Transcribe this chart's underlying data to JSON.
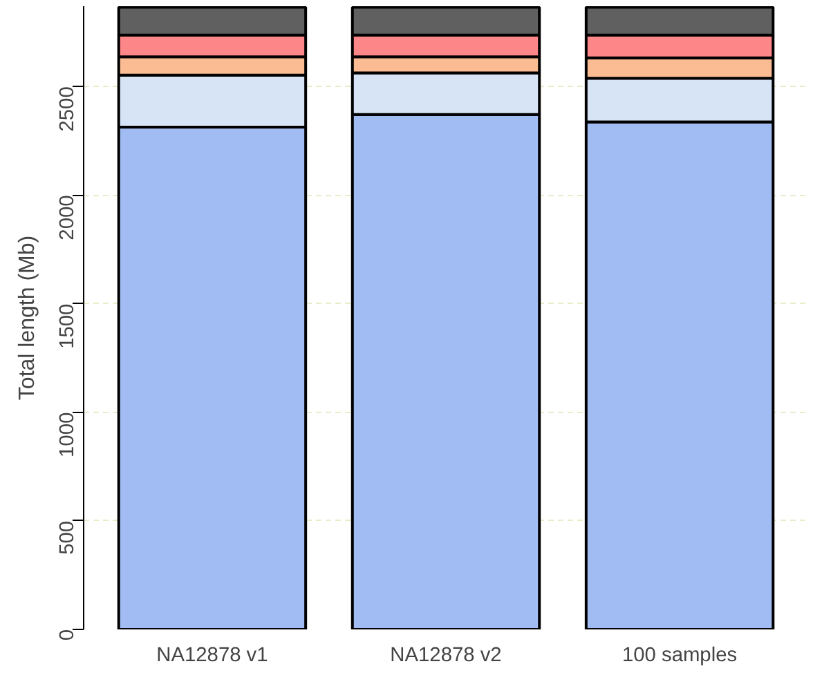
{
  "chart_data": {
    "type": "bar",
    "stacked": true,
    "ylabel": "Total length (Mb)",
    "categories": [
      "NA12878 v1",
      "NA12878 v2",
      "100 samples"
    ],
    "series": [
      {
        "color": "#a0bcf2",
        "values": [
          2313,
          2371,
          2337
        ]
      },
      {
        "color": "#d6e4f5",
        "values": [
          240,
          192,
          201
        ]
      },
      {
        "color": "#fbbc94",
        "values": [
          84,
          74,
          94
        ]
      },
      {
        "color": "#fc8688",
        "values": [
          100,
          100,
          105
        ]
      },
      {
        "color": "#606060",
        "values": [
          128,
          128,
          128
        ]
      }
    ],
    "ylim": [
      0,
      2870
    ],
    "yticks": [
      0,
      500,
      1000,
      1500,
      2000,
      2500
    ],
    "grid": "y"
  }
}
